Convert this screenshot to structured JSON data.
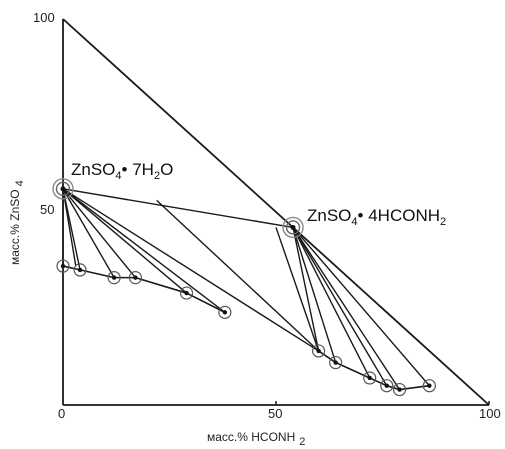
{
  "chart_data": {
    "type": "ternary-phase-diagram",
    "xlabel": "масс.% HCONH",
    "xlabel_sub": "2",
    "ylabel": "масс.% ZnSO",
    "ylabel_sub": "4",
    "xlim": [
      0,
      100
    ],
    "ylim": [
      0,
      100
    ],
    "x_ticks": [
      "0",
      "50",
      "100"
    ],
    "y_ticks": [
      "50",
      "100"
    ],
    "phases": [
      {
        "name": "ZnSO4·7H2O",
        "label_main": "ZnSO",
        "label_sub1": "4",
        "label_dot": "• 7H",
        "label_sub2": "2",
        "label_tail": "O",
        "x": 0,
        "y": 56
      },
      {
        "name": "ZnSO4·4HCONH2",
        "label_main": "ZnSO",
        "label_sub1": "4",
        "label_dot": "• 4HCONH",
        "label_sub2": "2",
        "label_tail": "",
        "x": 54,
        "y": 46
      }
    ],
    "triangle": [
      [
        0,
        100
      ],
      [
        0,
        0
      ],
      [
        100,
        0
      ]
    ],
    "liquid_points": [
      {
        "x": 0,
        "y": 36
      },
      {
        "x": 4,
        "y": 35
      },
      {
        "x": 12,
        "y": 33
      },
      {
        "x": 17,
        "y": 33
      },
      {
        "x": 29,
        "y": 29
      },
      {
        "x": 38,
        "y": 24
      },
      {
        "x": 60,
        "y": 14
      },
      {
        "x": 64,
        "y": 11
      },
      {
        "x": 72,
        "y": 7
      },
      {
        "x": 76,
        "y": 5
      },
      {
        "x": 79,
        "y": 4
      },
      {
        "x": 86,
        "y": 5
      }
    ],
    "tie_lines_from_phase1": [
      {
        "x": 0,
        "y": 36
      },
      {
        "x": 4,
        "y": 35
      },
      {
        "x": 12,
        "y": 33
      },
      {
        "x": 17,
        "y": 33
      },
      {
        "x": 29,
        "y": 29
      },
      {
        "x": 38,
        "y": 24
      },
      {
        "x": 60,
        "y": 14
      },
      {
        "x": 3,
        "y": 36
      }
    ],
    "tie_lines_from_phase2": [
      {
        "x": 60,
        "y": 14
      },
      {
        "x": 64,
        "y": 11
      },
      {
        "x": 72,
        "y": 7
      },
      {
        "x": 76,
        "y": 5
      },
      {
        "x": 79,
        "y": 4
      },
      {
        "x": 86,
        "y": 5
      }
    ],
    "extra_lines": [
      [
        {
          "x": 22,
          "y": 53
        },
        {
          "x": 60,
          "y": 14
        }
      ],
      [
        {
          "x": 50,
          "y": 46
        },
        {
          "x": 60,
          "y": 14
        }
      ],
      [
        {
          "x": 0,
          "y": 56
        },
        {
          "x": 54,
          "y": 46
        }
      ]
    ]
  }
}
